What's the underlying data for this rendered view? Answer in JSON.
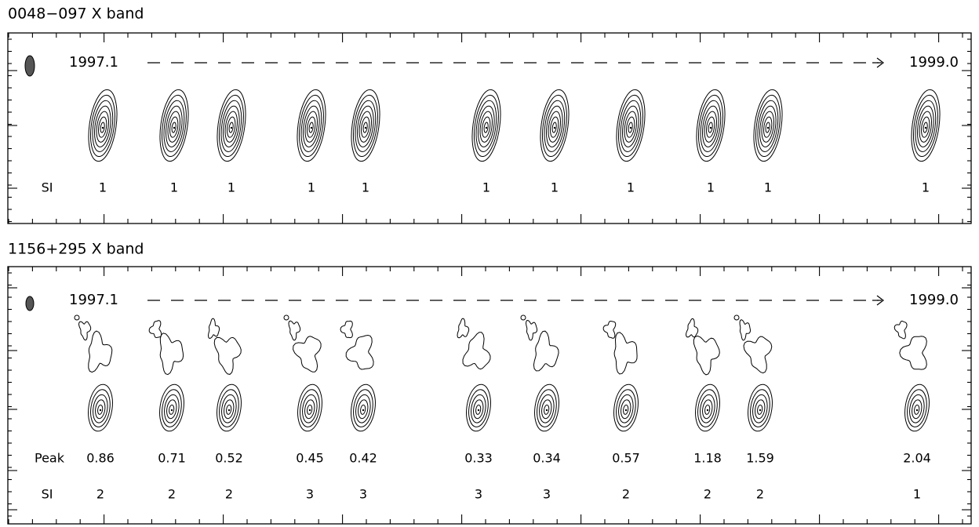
{
  "panels": [
    {
      "title": "0048−097 X band",
      "start": "1997.1",
      "end": "1999.0",
      "si_label": "SI",
      "si": [
        1,
        1,
        1,
        1,
        1,
        1,
        1,
        1,
        1,
        1,
        1
      ]
    },
    {
      "title": "1156+295 X band",
      "start": "1997.1",
      "end": "1999.0",
      "peak_label": "Peak",
      "peak": [
        0.86,
        0.71,
        0.52,
        0.45,
        0.42,
        0.33,
        0.34,
        0.57,
        1.18,
        1.59,
        2.04
      ],
      "si_label": "SI",
      "si": [
        2,
        2,
        2,
        3,
        3,
        3,
        3,
        2,
        2,
        2,
        1
      ]
    }
  ]
}
